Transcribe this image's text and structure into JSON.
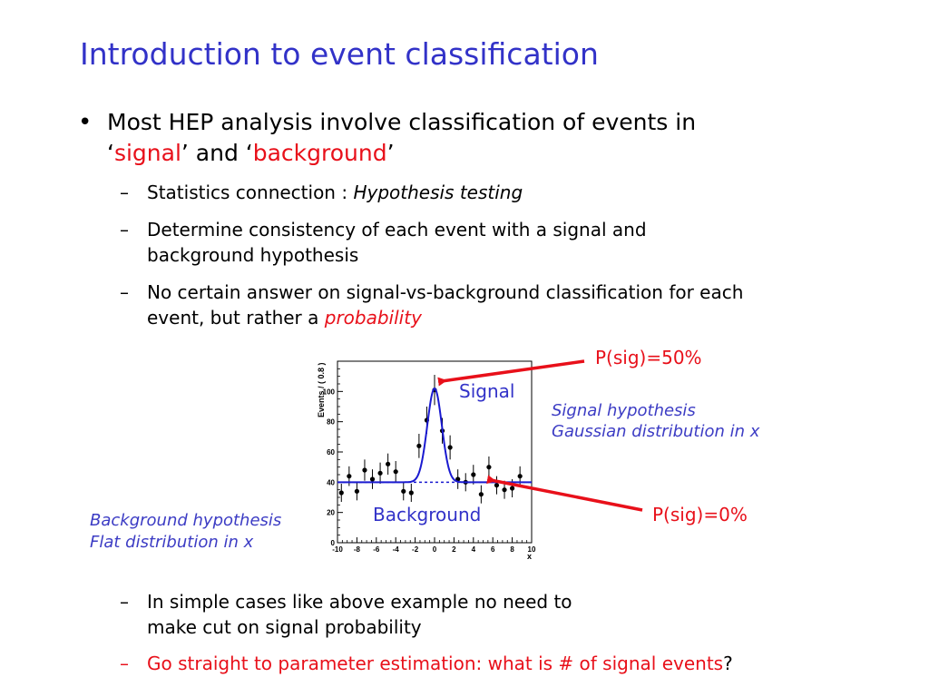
{
  "title": "Introduction to event classification",
  "bullet": {
    "line1": "Most HEP analysis involve classification of events in",
    "line2_q1": "‘",
    "line2_signal": "signal",
    "line2_mid": "’ and ‘",
    "line2_background": "background",
    "line2_end": "’"
  },
  "subs": {
    "s1_prefix": "Statistics connection : ",
    "s1_italic": "Hypothesis testing",
    "s2_line1": "Determine consistency of each event with a signal and",
    "s2_line2": "background hypothesis",
    "s3_line1": "No certain answer on signal-vs-background classification for each",
    "s3_line2_prefix": "event, but rather a ",
    "s3_italic": "probability",
    "s4_line1": "In simple cases like above example no need to",
    "s4_line2": "make cut on signal probability",
    "s5_red": "Go straight to parameter estimation: what is # of signal events",
    "s5_end": "?",
    "dash": "–"
  },
  "annotations": {
    "psig50": "P(sig)=50%",
    "psig0": "P(sig)=0%",
    "signal_label": "Signal",
    "background_label": "Background",
    "sig_hyp_1": "Signal hypothesis",
    "sig_hyp_2": "Gaussian distribution in x",
    "bkg_hyp_1": "Background hypothesis",
    "bkg_hyp_2": "Flat distribution in x"
  },
  "chart_data": {
    "type": "scatter",
    "ylabel": "Events / ( 0.8 )",
    "xlabel": "x",
    "xlim": [
      -10,
      10
    ],
    "ylim": [
      0,
      120
    ],
    "x_ticks": [
      "-10",
      "-8",
      "-6",
      "-4",
      "-2",
      "0",
      "2",
      "4",
      "6",
      "8",
      "10"
    ],
    "y_ticks": [
      "0",
      "20",
      "40",
      "60",
      "80",
      "100"
    ],
    "points": [
      {
        "x": -9.6,
        "y": 33,
        "err": 6
      },
      {
        "x": -8.8,
        "y": 44,
        "err": 6.5
      },
      {
        "x": -8.0,
        "y": 34,
        "err": 6
      },
      {
        "x": -7.2,
        "y": 48,
        "err": 7
      },
      {
        "x": -6.4,
        "y": 42,
        "err": 6.5
      },
      {
        "x": -5.6,
        "y": 46,
        "err": 7
      },
      {
        "x": -4.8,
        "y": 52,
        "err": 7
      },
      {
        "x": -4.0,
        "y": 47,
        "err": 7
      },
      {
        "x": -3.2,
        "y": 34,
        "err": 6
      },
      {
        "x": -2.4,
        "y": 33,
        "err": 6
      },
      {
        "x": -1.6,
        "y": 64,
        "err": 8
      },
      {
        "x": -0.8,
        "y": 81,
        "err": 9
      },
      {
        "x": 0.0,
        "y": 101,
        "err": 10
      },
      {
        "x": 0.8,
        "y": 74,
        "err": 8.5
      },
      {
        "x": 1.6,
        "y": 63,
        "err": 8
      },
      {
        "x": 2.4,
        "y": 42,
        "err": 6.5
      },
      {
        "x": 3.2,
        "y": 40,
        "err": 6
      },
      {
        "x": 4.0,
        "y": 45,
        "err": 6.5
      },
      {
        "x": 4.8,
        "y": 32,
        "err": 6
      },
      {
        "x": 5.6,
        "y": 50,
        "err": 7
      },
      {
        "x": 6.4,
        "y": 38,
        "err": 6
      },
      {
        "x": 7.2,
        "y": 35,
        "err": 6
      },
      {
        "x": 8.0,
        "y": 36,
        "err": 6
      },
      {
        "x": 8.8,
        "y": 44,
        "err": 6.5
      }
    ],
    "model": {
      "background_level": 40,
      "gauss_mean": 0,
      "gauss_sigma": 0.75,
      "gauss_amplitude": 62
    },
    "colors": {
      "fit_line": "#1a1ad0",
      "points": "#000000"
    }
  }
}
